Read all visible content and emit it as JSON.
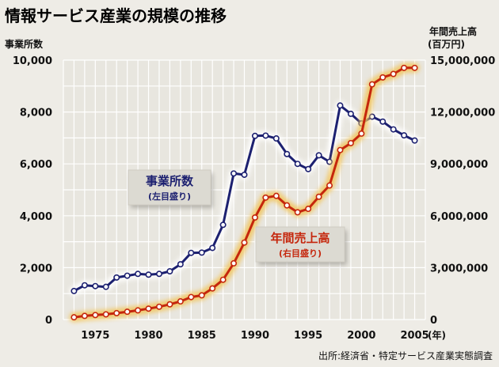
{
  "chart_data": {
    "type": "line",
    "title": "情報サービス産業の規模の推移",
    "left_axis": {
      "label": "事業所数",
      "ylim": [
        0,
        10000
      ],
      "ticks": [
        0,
        2000,
        4000,
        6000,
        8000,
        10000
      ],
      "tick_labels": [
        "0",
        "2,000",
        "4,000",
        "6,000",
        "8,000",
        "10,000"
      ]
    },
    "right_axis": {
      "label_line1": "年間売上高",
      "label_line2": "(百万円)",
      "ylim": [
        0,
        15000000
      ],
      "ticks": [
        0,
        3000000,
        6000000,
        9000000,
        12000000,
        15000000
      ],
      "tick_labels": [
        "0",
        "3,000,000",
        "6,000,000",
        "9,000,000",
        "12,000,000",
        "15,000,000"
      ]
    },
    "x_axis": {
      "unit_label": "(年)",
      "xlim": [
        1972,
        2006
      ],
      "ticks": [
        1975,
        1980,
        1985,
        1990,
        1995,
        2000,
        2005
      ],
      "tick_labels": [
        "1975",
        "1980",
        "1985",
        "1990",
        "1995",
        "2000",
        "2005"
      ]
    },
    "grid": true,
    "x": [
      1973,
      1974,
      1975,
      1976,
      1977,
      1978,
      1979,
      1980,
      1981,
      1982,
      1983,
      1984,
      1985,
      1986,
      1987,
      1988,
      1989,
      1990,
      1991,
      1992,
      1993,
      1994,
      1995,
      1996,
      1997,
      1998,
      1999,
      2000,
      2001,
      2002,
      2003,
      2004,
      2005
    ],
    "series": [
      {
        "name": "事業所数",
        "axis": "left",
        "color": "#1c2070",
        "legend_label": "事業所数",
        "legend_sub": "(左目盛り)",
        "values": [
          1100,
          1320,
          1290,
          1260,
          1620,
          1690,
          1760,
          1730,
          1760,
          1860,
          2130,
          2570,
          2580,
          2760,
          3650,
          5630,
          5580,
          7080,
          7090,
          6980,
          6380,
          6000,
          5800,
          6330,
          6080,
          8250,
          7930,
          7560,
          7820,
          7630,
          7330,
          7100,
          6900
        ]
      },
      {
        "name": "年間売上高",
        "axis": "right",
        "color": "#c5260c",
        "legend_label": "年間売上高",
        "legend_sub": "(右目盛り)",
        "values": [
          130000,
          210000,
          260000,
          300000,
          370000,
          450000,
          530000,
          630000,
          740000,
          880000,
          1050000,
          1300000,
          1400000,
          1800000,
          2300000,
          3250000,
          4450000,
          5900000,
          7050000,
          7150000,
          6600000,
          6200000,
          6400000,
          7100000,
          7750000,
          9800000,
          10200000,
          10750000,
          13600000,
          14000000,
          14200000,
          14550000,
          14550000
        ]
      }
    ],
    "source": "出所:経済省・特定サービス産業実態調査"
  }
}
